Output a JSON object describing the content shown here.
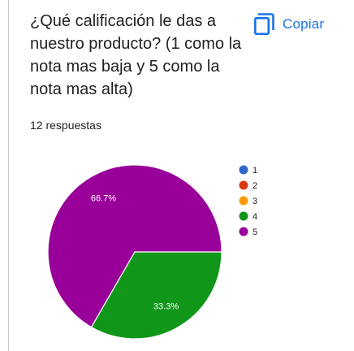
{
  "question": {
    "title": "¿Qué calificación le das a nuestro producto? (1 como la nota mas baja y 5 como la nota mas alta)",
    "responses": "12 respuestas"
  },
  "toolbar": {
    "copy_label": "Copiar",
    "copy_icon": "copy-icon"
  },
  "colors": {
    "accent": "#1a73e8",
    "text": "#202124"
  },
  "chart_data": {
    "type": "pie",
    "categories": [
      "1",
      "2",
      "3",
      "4",
      "5"
    ],
    "values": [
      0,
      0,
      0,
      4,
      8
    ],
    "data_labels": [
      "",
      "",
      "",
      "33.3%",
      "66.7%"
    ],
    "colors": [
      "#3366cc",
      "#dc3912",
      "#ff9900",
      "#109618",
      "#990099"
    ],
    "legend_position": "right"
  }
}
